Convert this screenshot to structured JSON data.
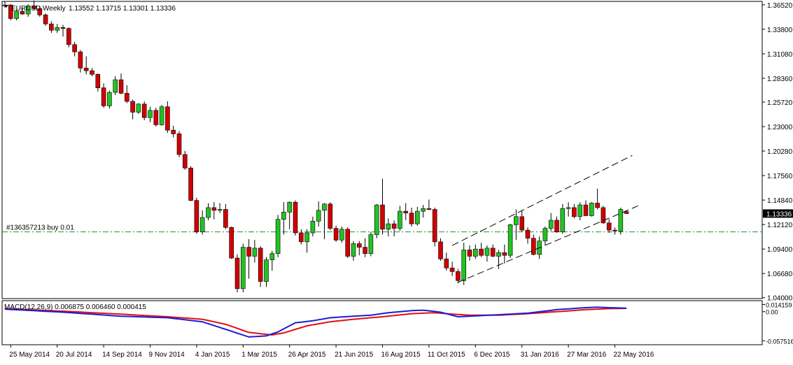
{
  "header": {
    "arrow_icon": "triangle-down-icon",
    "symbol": "EURUSD,Weekly",
    "ohlc": "1.13552 1.13715 1.13301 1.13336"
  },
  "order_line": {
    "label": "#136357213 buy 0.01",
    "price": 1.1131
  },
  "macd": {
    "label": "MACD(12,26,9) 0.006875 0.006460 0.000415"
  },
  "colors": {
    "bull": "#22c322",
    "bear": "#d00000",
    "macd_line": "#1c1cd8",
    "signal_line": "#e01010",
    "order_line": "#2e8b2e",
    "current_price_bg": "#000000"
  },
  "chart_data": [
    {
      "type": "candlestick",
      "ylim": [
        1.039,
        1.369
      ],
      "y_ticks": [
        "1.36520",
        "1.33800",
        "1.31080",
        "1.28360",
        "1.25720",
        "1.23000",
        "1.20280",
        "1.17560",
        "1.14840",
        "1.12120",
        "1.09400",
        "1.06680",
        "1.04000"
      ],
      "current_price_label": "1.13336",
      "x_tick_labels": [
        "25 May 2014",
        "20 Jul 2014",
        "14 Sep 2014",
        "9 Nov 2014",
        "4 Jan 2015",
        "1 Mar 2015",
        "26 Apr 2015",
        "21 Jun 2015",
        "16 Aug 2015",
        "11 Oct 2015",
        "6 Dec 2015",
        "31 Jan 2016",
        "27 Mar 2016",
        "22 May 2016"
      ],
      "x_tick_bar_index": [
        1,
        9,
        17,
        25,
        33,
        41,
        49,
        57,
        65,
        73,
        81,
        89,
        97,
        105
      ],
      "candles": [
        [
          1.364,
          1.369,
          1.362,
          1.365
        ],
        [
          1.365,
          1.366,
          1.348,
          1.35
        ],
        [
          1.35,
          1.36,
          1.348,
          1.358
        ],
        [
          1.358,
          1.362,
          1.354,
          1.355
        ],
        [
          1.355,
          1.366,
          1.352,
          1.364
        ],
        [
          1.364,
          1.37,
          1.36,
          1.361
        ],
        [
          1.361,
          1.364,
          1.352,
          1.354
        ],
        [
          1.354,
          1.356,
          1.342,
          1.344
        ],
        [
          1.344,
          1.347,
          1.334,
          1.337
        ],
        [
          1.337,
          1.344,
          1.334,
          1.34
        ],
        [
          1.34,
          1.343,
          1.33,
          1.339
        ],
        [
          1.339,
          1.34,
          1.318,
          1.321
        ],
        [
          1.321,
          1.324,
          1.308,
          1.313
        ],
        [
          1.313,
          1.315,
          1.29,
          1.295
        ],
        [
          1.295,
          1.308,
          1.288,
          1.292
        ],
        [
          1.292,
          1.295,
          1.286,
          1.288
        ],
        [
          1.288,
          1.289,
          1.269,
          1.273
        ],
        [
          1.273,
          1.278,
          1.251,
          1.253
        ],
        [
          1.253,
          1.27,
          1.25,
          1.268
        ],
        [
          1.268,
          1.286,
          1.265,
          1.282
        ],
        [
          1.282,
          1.289,
          1.266,
          1.267
        ],
        [
          1.267,
          1.276,
          1.256,
          1.258
        ],
        [
          1.258,
          1.26,
          1.238,
          1.246
        ],
        [
          1.246,
          1.256,
          1.244,
          1.255
        ],
        [
          1.255,
          1.258,
          1.237,
          1.24
        ],
        [
          1.24,
          1.252,
          1.235,
          1.248
        ],
        [
          1.248,
          1.251,
          1.23,
          1.232
        ],
        [
          1.232,
          1.254,
          1.231,
          1.252
        ],
        [
          1.252,
          1.258,
          1.223,
          1.226
        ],
        [
          1.226,
          1.231,
          1.218,
          1.222
        ],
        [
          1.222,
          1.225,
          1.196,
          1.199
        ],
        [
          1.199,
          1.203,
          1.182,
          1.184
        ],
        [
          1.184,
          1.186,
          1.147,
          1.148
        ],
        [
          1.148,
          1.151,
          1.111,
          1.113
        ],
        [
          1.113,
          1.137,
          1.11,
          1.129
        ],
        [
          1.129,
          1.145,
          1.126,
          1.14
        ],
        [
          1.14,
          1.146,
          1.127,
          1.137
        ],
        [
          1.137,
          1.145,
          1.134,
          1.138
        ],
        [
          1.138,
          1.144,
          1.116,
          1.118
        ],
        [
          1.118,
          1.119,
          1.083,
          1.084
        ],
        [
          1.084,
          1.088,
          1.046,
          1.05
        ],
        [
          1.05,
          1.1,
          1.046,
          1.096
        ],
        [
          1.096,
          1.105,
          1.061,
          1.086
        ],
        [
          1.086,
          1.104,
          1.079,
          1.095
        ],
        [
          1.095,
          1.097,
          1.052,
          1.058
        ],
        [
          1.058,
          1.085,
          1.052,
          1.082
        ],
        [
          1.082,
          1.092,
          1.07,
          1.089
        ],
        [
          1.089,
          1.132,
          1.085,
          1.127
        ],
        [
          1.127,
          1.146,
          1.11,
          1.135
        ],
        [
          1.135,
          1.147,
          1.116,
          1.146
        ],
        [
          1.146,
          1.148,
          1.109,
          1.112
        ],
        [
          1.112,
          1.116,
          1.099,
          1.102
        ],
        [
          1.102,
          1.116,
          1.09,
          1.112
        ],
        [
          1.112,
          1.13,
          1.108,
          1.125
        ],
        [
          1.125,
          1.147,
          1.119,
          1.137
        ],
        [
          1.137,
          1.145,
          1.105,
          1.144
        ],
        [
          1.144,
          1.146,
          1.115,
          1.117
        ],
        [
          1.117,
          1.12,
          1.102,
          1.104
        ],
        [
          1.104,
          1.119,
          1.101,
          1.116
        ],
        [
          1.116,
          1.118,
          1.084,
          1.086
        ],
        [
          1.086,
          1.103,
          1.081,
          1.1
        ],
        [
          1.1,
          1.103,
          1.087,
          1.096
        ],
        [
          1.096,
          1.106,
          1.085,
          1.089
        ],
        [
          1.089,
          1.113,
          1.086,
          1.11
        ],
        [
          1.11,
          1.144,
          1.106,
          1.143
        ],
        [
          1.143,
          1.172,
          1.11,
          1.116
        ],
        [
          1.116,
          1.128,
          1.108,
          1.122
        ],
        [
          1.122,
          1.126,
          1.108,
          1.117
        ],
        [
          1.117,
          1.142,
          1.114,
          1.136
        ],
        [
          1.136,
          1.145,
          1.126,
          1.134
        ],
        [
          1.134,
          1.14,
          1.119,
          1.122
        ],
        [
          1.122,
          1.141,
          1.12,
          1.136
        ],
        [
          1.136,
          1.143,
          1.129,
          1.139
        ],
        [
          1.139,
          1.149,
          1.137,
          1.138
        ],
        [
          1.138,
          1.14,
          1.097,
          1.102
        ],
        [
          1.102,
          1.106,
          1.081,
          1.083
        ],
        [
          1.083,
          1.09,
          1.07,
          1.073
        ],
        [
          1.073,
          1.08,
          1.064,
          1.069
        ],
        [
          1.069,
          1.072,
          1.056,
          1.059
        ],
        [
          1.059,
          1.101,
          1.054,
          1.093
        ],
        [
          1.093,
          1.098,
          1.081,
          1.086
        ],
        [
          1.086,
          1.099,
          1.083,
          1.094
        ],
        [
          1.094,
          1.101,
          1.085,
          1.087
        ],
        [
          1.087,
          1.098,
          1.08,
          1.095
        ],
        [
          1.095,
          1.099,
          1.085,
          1.086
        ],
        [
          1.086,
          1.093,
          1.072,
          1.09
        ],
        [
          1.09,
          1.099,
          1.078,
          1.087
        ],
        [
          1.087,
          1.122,
          1.084,
          1.121
        ],
        [
          1.121,
          1.138,
          1.104,
          1.13
        ],
        [
          1.13,
          1.137,
          1.113,
          1.115
        ],
        [
          1.115,
          1.118,
          1.1,
          1.106
        ],
        [
          1.106,
          1.11,
          1.087,
          1.088
        ],
        [
          1.088,
          1.108,
          1.083,
          1.103
        ],
        [
          1.103,
          1.119,
          1.098,
          1.117
        ],
        [
          1.117,
          1.134,
          1.114,
          1.126
        ],
        [
          1.126,
          1.13,
          1.112,
          1.113
        ],
        [
          1.113,
          1.144,
          1.111,
          1.139
        ],
        [
          1.139,
          1.146,
          1.13,
          1.14
        ],
        [
          1.14,
          1.144,
          1.128,
          1.13
        ],
        [
          1.13,
          1.146,
          1.126,
          1.143
        ],
        [
          1.143,
          1.148,
          1.131,
          1.131
        ],
        [
          1.131,
          1.146,
          1.13,
          1.145
        ],
        [
          1.145,
          1.161,
          1.138,
          1.14
        ],
        [
          1.14,
          1.142,
          1.122,
          1.123
        ],
        [
          1.123,
          1.127,
          1.112,
          1.115
        ],
        [
          1.115,
          1.118,
          1.11,
          1.114
        ],
        [
          1.114,
          1.14,
          1.11,
          1.138
        ],
        [
          1.1355,
          1.1372,
          1.133,
          1.1334
        ]
      ],
      "channel": {
        "upper": [
          [
            77,
            1.098
          ],
          [
            108,
            1.198
          ]
        ],
        "lower": [
          [
            78,
            1.057
          ],
          [
            109,
            1.142
          ]
        ]
      }
    },
    {
      "type": "line",
      "name": "MACD(12,26,9)",
      "ylim": [
        -0.064,
        0.019
      ],
      "y_ticks": [
        "0.014159",
        "0.00",
        "-0.057516"
      ],
      "macd_keys": [
        [
          0,
          0.005
        ],
        [
          10,
          -0.001
        ],
        [
          20,
          -0.009
        ],
        [
          28,
          -0.012
        ],
        [
          34,
          -0.02
        ],
        [
          38,
          -0.035
        ],
        [
          42,
          -0.05
        ],
        [
          45,
          -0.048
        ],
        [
          47,
          -0.04
        ],
        [
          50,
          -0.022
        ],
        [
          53,
          -0.018
        ],
        [
          56,
          -0.012
        ],
        [
          60,
          -0.009
        ],
        [
          63,
          -0.007
        ],
        [
          66,
          -0.002
        ],
        [
          70,
          0.002
        ],
        [
          72,
          0.003
        ],
        [
          75,
          -0.001
        ],
        [
          78,
          -0.01
        ],
        [
          80,
          -0.009
        ],
        [
          85,
          -0.006
        ],
        [
          90,
          -0.003
        ],
        [
          95,
          0.004
        ],
        [
          100,
          0.008
        ],
        [
          102,
          0.009
        ],
        [
          104,
          0.008
        ],
        [
          107,
          0.0069
        ]
      ],
      "signal_keys": [
        [
          0,
          0.006
        ],
        [
          10,
          0.001
        ],
        [
          20,
          -0.005
        ],
        [
          28,
          -0.01
        ],
        [
          34,
          -0.015
        ],
        [
          38,
          -0.025
        ],
        [
          42,
          -0.041
        ],
        [
          46,
          -0.046
        ],
        [
          48,
          -0.042
        ],
        [
          52,
          -0.028
        ],
        [
          56,
          -0.02
        ],
        [
          60,
          -0.015
        ],
        [
          65,
          -0.01
        ],
        [
          70,
          -0.004
        ],
        [
          74,
          -0.002
        ],
        [
          77,
          -0.005
        ],
        [
          80,
          -0.007
        ],
        [
          85,
          -0.007
        ],
        [
          90,
          -0.004
        ],
        [
          95,
          0.0
        ],
        [
          100,
          0.004
        ],
        [
          104,
          0.006
        ],
        [
          107,
          0.0065
        ]
      ]
    }
  ]
}
